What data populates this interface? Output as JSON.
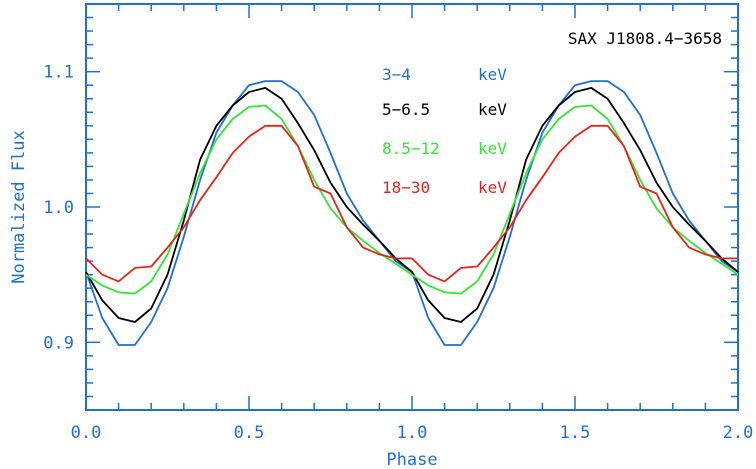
{
  "chart_data": {
    "type": "line",
    "title": "SAX J1808.4−3658",
    "xlabel": "Phase",
    "ylabel": "Normalized Flux",
    "xlim": [
      0.0,
      2.0
    ],
    "ylim": [
      0.85,
      1.15
    ],
    "x_ticks": [
      "0.0",
      "0.5",
      "1.0",
      "1.5",
      "2.0"
    ],
    "y_ticks": [
      "0.9",
      "1.0",
      "1.1"
    ],
    "grid": false,
    "legend_position": "top-right",
    "axis_color": "#1f6fd6",
    "x": [
      0.0,
      0.05,
      0.1,
      0.15,
      0.2,
      0.25,
      0.3,
      0.35,
      0.4,
      0.45,
      0.5,
      0.55,
      0.6,
      0.65,
      0.7,
      0.75,
      0.8,
      0.85,
      0.9,
      0.95,
      1.0,
      1.05,
      1.1,
      1.15,
      1.2,
      1.25,
      1.3,
      1.35,
      1.4,
      1.45,
      1.5,
      1.55,
      1.6,
      1.65,
      1.7,
      1.75,
      1.8,
      1.85,
      1.9,
      1.95,
      2.0
    ],
    "series": [
      {
        "name": "3−4",
        "unit": "keV",
        "color": "#1f6fd6",
        "values": [
          0.952,
          0.918,
          0.898,
          0.898,
          0.915,
          0.94,
          0.978,
          1.02,
          1.055,
          1.075,
          1.09,
          1.093,
          1.093,
          1.085,
          1.068,
          1.04,
          1.01,
          0.99,
          0.975,
          0.96,
          0.952,
          0.918,
          0.898,
          0.898,
          0.915,
          0.94,
          0.978,
          1.02,
          1.055,
          1.075,
          1.09,
          1.093,
          1.093,
          1.085,
          1.068,
          1.04,
          1.01,
          0.99,
          0.975,
          0.96,
          0.952
        ]
      },
      {
        "name": "5−6.5",
        "unit": "keV",
        "color": "#000000",
        "values": [
          0.952,
          0.931,
          0.918,
          0.915,
          0.925,
          0.95,
          0.99,
          1.035,
          1.06,
          1.075,
          1.085,
          1.088,
          1.08,
          1.062,
          1.042,
          1.018,
          1.0,
          0.987,
          0.975,
          0.962,
          0.952,
          0.931,
          0.918,
          0.915,
          0.925,
          0.95,
          0.99,
          1.035,
          1.06,
          1.075,
          1.085,
          1.088,
          1.08,
          1.062,
          1.042,
          1.018,
          1.0,
          0.987,
          0.975,
          0.962,
          0.952
        ]
      },
      {
        "name": "8.5−12",
        "unit": "keV",
        "color": "#33e633",
        "values": [
          0.95,
          0.942,
          0.937,
          0.936,
          0.945,
          0.965,
          0.995,
          1.025,
          1.05,
          1.065,
          1.074,
          1.075,
          1.065,
          1.045,
          1.02,
          0.999,
          0.985,
          0.975,
          0.966,
          0.958,
          0.95,
          0.942,
          0.937,
          0.936,
          0.945,
          0.965,
          0.995,
          1.025,
          1.05,
          1.065,
          1.074,
          1.075,
          1.065,
          1.045,
          1.02,
          0.999,
          0.985,
          0.975,
          0.966,
          0.958,
          0.95
        ]
      },
      {
        "name": "18−30",
        "unit": "keV",
        "color": "#e8231a",
        "values": [
          0.962,
          0.95,
          0.945,
          0.955,
          0.956,
          0.97,
          0.985,
          1.005,
          1.022,
          1.04,
          1.052,
          1.06,
          1.06,
          1.045,
          1.015,
          1.01,
          0.985,
          0.97,
          0.965,
          0.962,
          0.962,
          0.95,
          0.945,
          0.955,
          0.956,
          0.97,
          0.985,
          1.005,
          1.022,
          1.04,
          1.052,
          1.06,
          1.06,
          1.045,
          1.015,
          1.01,
          0.985,
          0.97,
          0.965,
          0.962,
          0.962
        ]
      }
    ]
  }
}
